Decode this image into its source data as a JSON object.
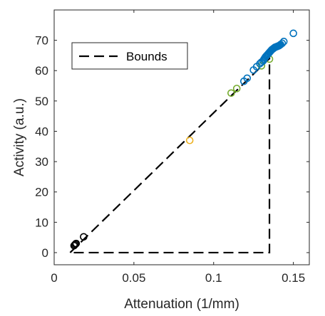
{
  "chart_data": {
    "type": "scatter",
    "title": "",
    "xlabel": "Attenuation (1/mm)",
    "ylabel": "Activity (a.u.)",
    "xlim": [
      0,
      0.16
    ],
    "ylim": [
      -4,
      80
    ],
    "xticks": [
      0,
      0.05,
      0.1,
      0.15
    ],
    "xtick_labels": [
      "0",
      "0.05",
      "0.1",
      "0.15"
    ],
    "yticks": [
      0,
      10,
      20,
      30,
      40,
      50,
      60,
      70
    ],
    "ytick_labels": [
      "0",
      "10",
      "20",
      "30",
      "40",
      "50",
      "60",
      "70"
    ],
    "grid": false,
    "legend_position": "top-left",
    "bounds": {
      "name": "Bounds",
      "color": "#000000",
      "style": "dashed",
      "x": [
        0.01,
        0.135,
        0.135,
        0.01,
        0.01
      ],
      "y": [
        0,
        64,
        0,
        0,
        0
      ]
    },
    "series": [
      {
        "color": "#000000",
        "marker": "open-circle",
        "x": [
          0.0125,
          0.013,
          0.0135,
          0.0138,
          0.0185
        ],
        "y": [
          2.3,
          2.6,
          2.9,
          3.0,
          5.2
        ]
      },
      {
        "color": "#EDB120",
        "marker": "open-circle",
        "x": [
          0.085
        ],
        "y": [
          37.0
        ]
      },
      {
        "color": "#77AC30",
        "marker": "open-circle",
        "x": [
          0.111,
          0.1145,
          0.13,
          0.135
        ],
        "y": [
          52.6,
          54.1,
          61.6,
          63.8
        ]
      },
      {
        "color": "#0072BD",
        "marker": "open-circle",
        "x": [
          0.119,
          0.121,
          0.125,
          0.127,
          0.129,
          0.13,
          0.131,
          0.1315,
          0.132,
          0.1325,
          0.133,
          0.1335,
          0.134,
          0.1345,
          0.135,
          0.1355,
          0.136,
          0.1365,
          0.137,
          0.1375,
          0.138,
          0.1385,
          0.139,
          0.1395,
          0.14,
          0.1405,
          0.141,
          0.1415,
          0.142,
          0.143,
          0.144,
          0.15
        ],
        "y": [
          56.5,
          57.5,
          60.2,
          61.3,
          62.3,
          62.8,
          63.2,
          63.7,
          64.1,
          64.5,
          64.8,
          65.1,
          65.4,
          65.7,
          66.0,
          66.3,
          66.6,
          66.9,
          67.1,
          67.3,
          67.5,
          67.7,
          67.8,
          67.9,
          68.0,
          68.1,
          68.2,
          68.4,
          68.6,
          69.0,
          69.6,
          72.3
        ]
      }
    ]
  }
}
